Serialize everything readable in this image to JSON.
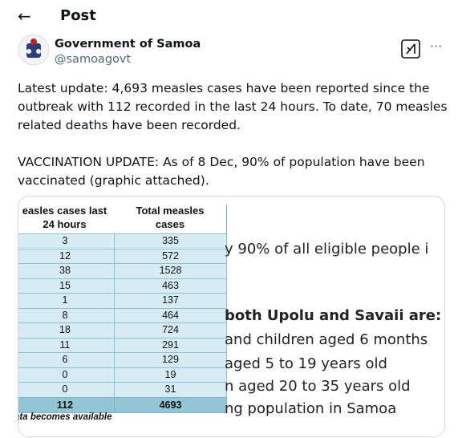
{
  "header": {
    "title": "Post"
  },
  "account": {
    "name": "Government of Samoa",
    "handle": "@samoagovt"
  },
  "post": {
    "paragraphs": [
      [
        "Latest update: 4,693 measles cases have been reported since the",
        "outbreak with 112 recorded in the last 24 hours. To date, 70 measles",
        "related deaths have been recorded."
      ],
      [
        "VACCINATION UPDATE: As of 8 Dec, 90% of population have been",
        "vaccinated (graphic attached)."
      ]
    ]
  },
  "image": {
    "table": {
      "headers": [
        [
          "easles cases last",
          "24 hours"
        ],
        [
          "Total measles",
          "cases"
        ]
      ],
      "rows": [
        [
          3,
          335
        ],
        [
          12,
          572
        ],
        [
          38,
          1528
        ],
        [
          15,
          463
        ],
        [
          1,
          137
        ],
        [
          8,
          464
        ],
        [
          18,
          724
        ],
        [
          11,
          291
        ],
        [
          6,
          129
        ],
        [
          0,
          19
        ],
        [
          0,
          31
        ]
      ],
      "total": [
        112,
        4693
      ],
      "footnote": "data becomes available"
    },
    "text_lines": [
      "y 90% of all eligible people i",
      "both Upolu and Savaii are:",
      "and children aged 6 months",
      "aged 5 to 19 years old",
      "n aged 20 to 35 years old",
      "ng population in Samoa"
    ]
  }
}
